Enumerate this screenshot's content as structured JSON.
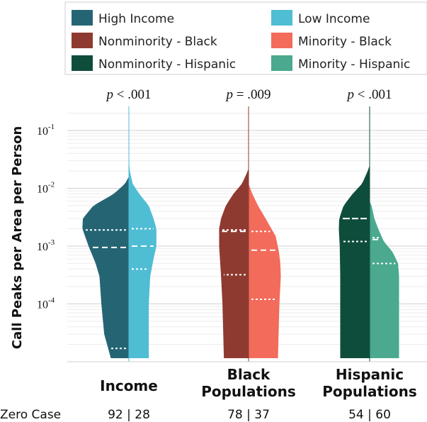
{
  "chart_data": {
    "type": "violin",
    "ylabel": "Call Peaks per Area per Person",
    "yscale": "log",
    "ylim": [
      1.1e-05,
      0.25
    ],
    "yticks": [
      {
        "value": 0.1,
        "mantissa": "10",
        "exp": "-1"
      },
      {
        "value": 0.01,
        "mantissa": "10",
        "exp": "-2"
      },
      {
        "value": 0.001,
        "mantissa": "10",
        "exp": "-3"
      },
      {
        "value": 0.0001,
        "mantissa": "10",
        "exp": "-4"
      }
    ],
    "legend": [
      {
        "label": "High Income",
        "color": "#256573"
      },
      {
        "label": "Low Income",
        "color": "#4fbdd4"
      },
      {
        "label": "Nonminority - Black",
        "color": "#8f3a30"
      },
      {
        "label": "Minority - Black",
        "color": "#f26b5b"
      },
      {
        "label": "Nonminority - Hispanic",
        "color": "#0e4d3c"
      },
      {
        "label": "Minority - Hispanic",
        "color": "#4aa98e"
      }
    ],
    "zero_case_label": "Zero Case",
    "groups": [
      {
        "label_lines": [
          "Income"
        ],
        "p_prefix": "p",
        "p_op": " < ",
        "p_val": ".001",
        "zero_case": "92 | 28",
        "left": {
          "name": "High Income",
          "color": "#256573",
          "quartiles": [
            1.7e-05,
            0.00095,
            0.0019
          ],
          "profile": [
            [
              1.15e-05,
              0.38
            ],
            [
              3e-05,
              0.52
            ],
            [
              0.0001,
              0.58
            ],
            [
              0.0003,
              0.62
            ],
            [
              0.0005,
              0.7
            ],
            [
              0.001,
              0.85
            ],
            [
              0.002,
              0.98
            ],
            [
              0.003,
              0.97
            ],
            [
              0.005,
              0.75
            ],
            [
              0.008,
              0.32
            ],
            [
              0.012,
              0.08
            ],
            [
              0.016,
              0.0
            ]
          ]
        },
        "right": {
          "name": "Low Income",
          "color": "#4fbdd4",
          "quartiles": [
            0.0004,
            0.001,
            0.002
          ],
          "profile": [
            [
              1.15e-05,
              0.42
            ],
            [
              0.0001,
              0.42
            ],
            [
              0.0003,
              0.45
            ],
            [
              0.0006,
              0.52
            ],
            [
              0.001,
              0.58
            ],
            [
              0.002,
              0.58
            ],
            [
              0.003,
              0.52
            ],
            [
              0.005,
              0.42
            ],
            [
              0.008,
              0.22
            ],
            [
              0.012,
              0.08
            ],
            [
              0.02,
              0.02
            ],
            [
              0.03,
              0.0
            ]
          ]
        }
      },
      {
        "label_lines": [
          "Black",
          "Populations"
        ],
        "p_prefix": "p",
        "p_op": " = ",
        "p_val": ".009",
        "zero_case": "78 | 37",
        "left": {
          "name": "Nonminority - Black",
          "color": "#8f3a30",
          "quartiles": [
            0.00032,
            0.0018,
            0.0019
          ],
          "profile": [
            [
              1.15e-05,
              0.52
            ],
            [
              0.0001,
              0.55
            ],
            [
              0.0003,
              0.58
            ],
            [
              0.001,
              0.62
            ],
            [
              0.002,
              0.62
            ],
            [
              0.003,
              0.58
            ],
            [
              0.005,
              0.48
            ],
            [
              0.008,
              0.32
            ],
            [
              0.012,
              0.14
            ],
            [
              0.018,
              0.04
            ],
            [
              0.022,
              0.0
            ]
          ]
        },
        "right": {
          "name": "Minority - Black",
          "color": "#f26b5b",
          "quartiles": [
            0.00012,
            0.00085,
            0.0018
          ],
          "profile": [
            [
              1.15e-05,
              0.62
            ],
            [
              0.0001,
              0.65
            ],
            [
              0.0003,
              0.68
            ],
            [
              0.0005,
              0.67
            ],
            [
              0.0008,
              0.64
            ],
            [
              0.0015,
              0.57
            ],
            [
              0.002,
              0.48
            ],
            [
              0.003,
              0.36
            ],
            [
              0.005,
              0.2
            ],
            [
              0.008,
              0.08
            ],
            [
              0.012,
              0.0
            ]
          ]
        }
      },
      {
        "label_lines": [
          "Hispanic",
          "Populations"
        ],
        "p_prefix": "p",
        "p_op": " < ",
        "p_val": ".001",
        "zero_case": "54 | 60",
        "left": {
          "name": "Nonminority - Hispanic",
          "color": "#0e4d3c",
          "quartiles": [
            0.0012,
            0.003,
            0.003
          ],
          "profile": [
            [
              1.15e-05,
              0.62
            ],
            [
              0.0003,
              0.62
            ],
            [
              0.001,
              0.63
            ],
            [
              0.002,
              0.65
            ],
            [
              0.003,
              0.64
            ],
            [
              0.005,
              0.55
            ],
            [
              0.008,
              0.36
            ],
            [
              0.012,
              0.16
            ],
            [
              0.02,
              0.04
            ],
            [
              0.025,
              0.0
            ]
          ]
        },
        "right": {
          "name": "Minority - Hispanic",
          "color": "#4aa98e",
          "quartiles": [
            0.0005,
            0.0013,
            0.0014
          ],
          "profile": [
            [
              1.15e-05,
              0.62
            ],
            [
              0.0003,
              0.62
            ],
            [
              0.0005,
              0.6
            ],
            [
              0.0008,
              0.48
            ],
            [
              0.0012,
              0.3
            ],
            [
              0.002,
              0.18
            ],
            [
              0.003,
              0.1
            ],
            [
              0.005,
              0.04
            ],
            [
              0.006,
              0.0
            ]
          ]
        }
      }
    ]
  }
}
